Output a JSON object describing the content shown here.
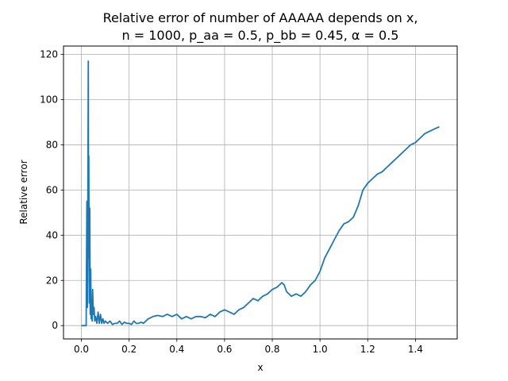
{
  "chart_data": {
    "type": "line",
    "title_line1": "Relative error of number of AAAAA depends on x,",
    "title_line2": "n = 1000, p_aa = 0.5, p_bb = 0.45, α = 0.5",
    "xlabel": "x",
    "ylabel": "Relative error",
    "xlim": [
      -0.075,
      1.575
    ],
    "ylim": [
      -5.9,
      123.7
    ],
    "xticks": [
      0.0,
      0.2,
      0.4,
      0.6,
      0.8,
      1.0,
      1.2,
      1.4
    ],
    "xtick_labels": [
      "0.0",
      "0.2",
      "0.4",
      "0.6",
      "0.8",
      "1.0",
      "1.2",
      "1.4"
    ],
    "yticks": [
      0,
      20,
      40,
      60,
      80,
      100,
      120
    ],
    "ytick_labels": [
      "0",
      "20",
      "40",
      "60",
      "80",
      "100",
      "120"
    ],
    "grid": true,
    "line_color": "#1f77b4",
    "series": [
      {
        "x": [
          0.0,
          0.02,
          0.021,
          0.023,
          0.025,
          0.027,
          0.029,
          0.03,
          0.031,
          0.033,
          0.035,
          0.037,
          0.039,
          0.041,
          0.043,
          0.045,
          0.047,
          0.05,
          0.053,
          0.056,
          0.06,
          0.065,
          0.07,
          0.075,
          0.08,
          0.085,
          0.09,
          0.095,
          0.1,
          0.11,
          0.12,
          0.13,
          0.14,
          0.15,
          0.16,
          0.17,
          0.18,
          0.19,
          0.2,
          0.21,
          0.22,
          0.23,
          0.24,
          0.25,
          0.26,
          0.28,
          0.3,
          0.32,
          0.34,
          0.36,
          0.38,
          0.4,
          0.42,
          0.44,
          0.46,
          0.48,
          0.5,
          0.52,
          0.54,
          0.56,
          0.58,
          0.6,
          0.62,
          0.64,
          0.66,
          0.68,
          0.7,
          0.72,
          0.74,
          0.76,
          0.78,
          0.8,
          0.82,
          0.84,
          0.85,
          0.86,
          0.88,
          0.9,
          0.92,
          0.94,
          0.96,
          0.98,
          1.0,
          1.02,
          1.04,
          1.06,
          1.08,
          1.1,
          1.12,
          1.14,
          1.16,
          1.18,
          1.2,
          1.22,
          1.24,
          1.26,
          1.28,
          1.3,
          1.32,
          1.34,
          1.36,
          1.38,
          1.4,
          1.42,
          1.44,
          1.46,
          1.48,
          1.5
        ],
        "y": [
          0,
          0,
          20,
          55,
          8,
          55,
          117,
          30,
          75,
          10,
          52,
          5,
          25,
          3,
          10,
          2,
          16,
          5,
          8,
          2,
          4,
          1,
          6,
          1,
          5,
          1,
          3,
          1,
          2,
          1,
          2,
          0.5,
          1,
          1,
          2,
          0.5,
          1.5,
          1,
          1,
          0.5,
          2,
          1,
          1,
          1.5,
          1,
          3,
          4,
          4.5,
          4,
          5,
          4,
          5,
          3,
          4,
          3,
          4,
          4,
          3.5,
          5,
          4,
          6,
          7,
          6,
          5,
          7,
          8,
          10,
          12,
          11,
          13,
          14,
          16,
          17,
          19,
          18,
          15,
          13,
          14,
          13,
          15,
          18,
          20,
          24,
          30,
          34,
          38,
          42,
          45,
          46,
          48,
          53,
          60,
          63,
          65,
          67,
          68,
          70,
          72,
          74,
          76,
          78,
          80,
          81,
          83,
          85,
          86,
          87,
          88
        ]
      }
    ]
  }
}
